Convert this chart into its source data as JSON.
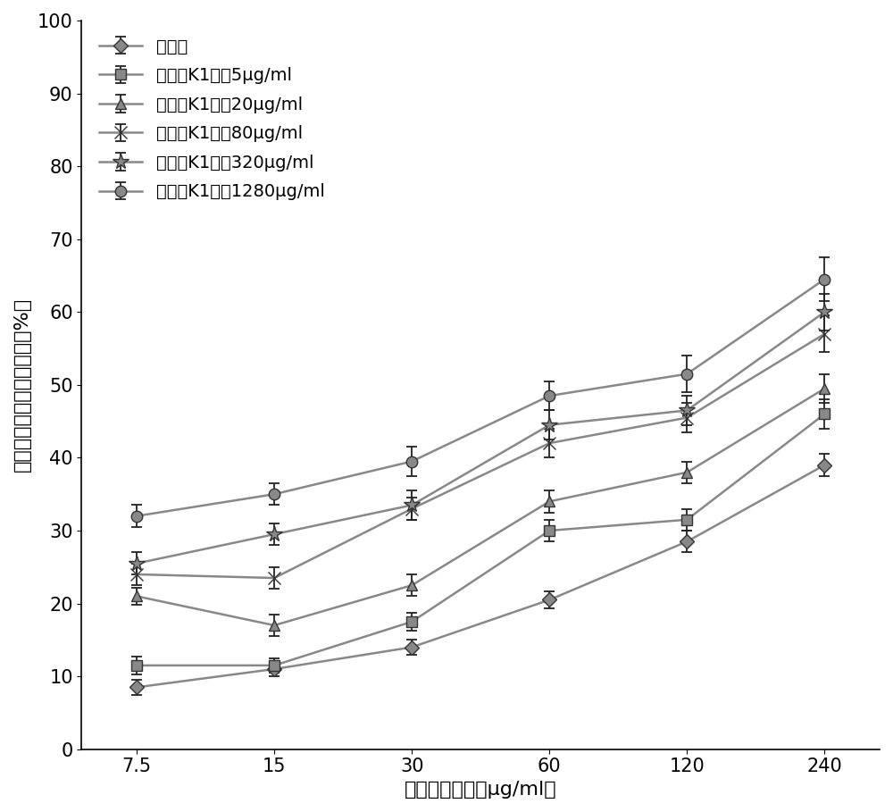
{
  "x_indices": [
    0,
    1,
    2,
    3,
    4,
    5
  ],
  "x_labels": [
    "7.5",
    "15",
    "30",
    "60",
    "120",
    "240"
  ],
  "series": [
    {
      "label": "对照组",
      "marker": "D",
      "y": [
        8.5,
        11.0,
        14.0,
        20.5,
        28.5,
        39.0
      ],
      "yerr": [
        1.0,
        1.0,
        1.0,
        1.2,
        1.5,
        1.5
      ]
    },
    {
      "label": "维生素K1浓剆5μg/ml",
      "marker": "s",
      "y": [
        11.5,
        11.5,
        17.5,
        30.0,
        31.5,
        46.0
      ],
      "yerr": [
        1.2,
        1.0,
        1.2,
        1.5,
        1.5,
        2.0
      ]
    },
    {
      "label": "维生素K1浓剆20μg/ml",
      "marker": "^",
      "y": [
        21.0,
        17.0,
        22.5,
        34.0,
        38.0,
        49.5
      ],
      "yerr": [
        1.2,
        1.5,
        1.5,
        1.5,
        1.5,
        2.0
      ]
    },
    {
      "label": "维生素K1浓剆80μg/ml",
      "marker": "x",
      "y": [
        24.0,
        23.5,
        33.0,
        42.0,
        45.5,
        57.0
      ],
      "yerr": [
        1.5,
        1.5,
        1.5,
        2.0,
        2.0,
        2.5
      ]
    },
    {
      "label": "维生素K1浓剆320μg/ml",
      "marker": "*",
      "y": [
        25.5,
        29.5,
        33.5,
        44.5,
        46.5,
        60.0
      ],
      "yerr": [
        1.5,
        1.5,
        2.0,
        2.0,
        2.0,
        2.5
      ]
    },
    {
      "label": "维生素K1浓剆1280μg/ml",
      "marker": "o",
      "y": [
        32.0,
        35.0,
        39.5,
        48.5,
        51.5,
        64.5
      ],
      "yerr": [
        1.5,
        1.5,
        2.0,
        2.0,
        2.5,
        3.0
      ]
    }
  ],
  "line_color": "#888888",
  "xlabel": "替莫唑胺浓度（μg/ml）",
  "ylabel": "胆管癌类器官细胞抑制率（%）",
  "ylim": [
    0,
    100
  ],
  "yticks": [
    0,
    10,
    20,
    30,
    40,
    50,
    60,
    70,
    80,
    90,
    100
  ],
  "label_fontsize": 16,
  "tick_fontsize": 15,
  "legend_fontsize": 14
}
